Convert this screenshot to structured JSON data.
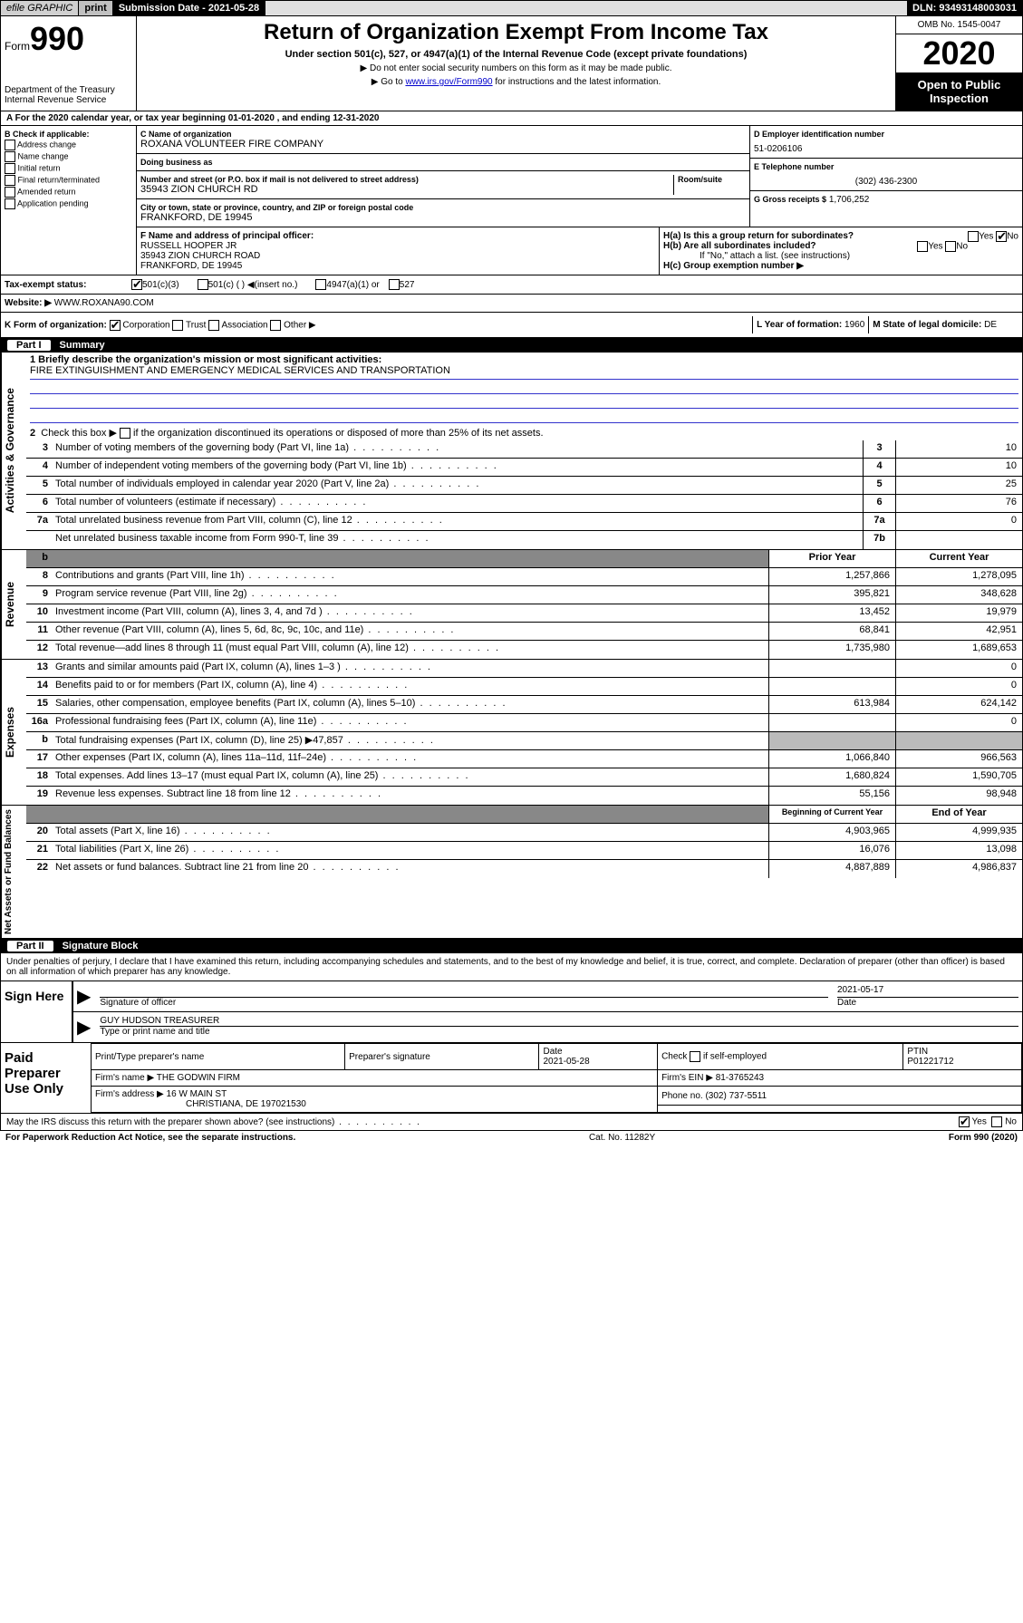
{
  "topbar": {
    "efile_label": "efile GRAPHIC",
    "print_btn": "print",
    "sub_date_label": "Submission Date - 2021-05-28",
    "dln": "DLN: 93493148003031"
  },
  "header": {
    "form_prefix": "Form",
    "form_no": "990",
    "dept": "Department of the Treasury\nInternal Revenue Service",
    "title": "Return of Organization Exempt From Income Tax",
    "subtitle": "Under section 501(c), 527, or 4947(a)(1) of the Internal Revenue Code (except private foundations)",
    "note1": "▶ Do not enter social security numbers on this form as it may be made public.",
    "note2_pre": "▶ Go to ",
    "note2_link": "www.irs.gov/Form990",
    "note2_post": " for instructions and the latest information.",
    "omb": "OMB No. 1545-0047",
    "year": "2020",
    "inspect": "Open to Public Inspection"
  },
  "lineA": "A For the 2020 calendar year, or tax year beginning 01-01-2020   , and ending 12-31-2020",
  "colB": {
    "hdr": "B Check if applicable:",
    "opts": [
      "Address change",
      "Name change",
      "Initial return",
      "Final return/terminated",
      "Amended return",
      "Application pending"
    ]
  },
  "colC": {
    "name_lbl": "C Name of organization",
    "name_val": "ROXANA VOLUNTEER FIRE COMPANY",
    "dba_lbl": "Doing business as",
    "dba_val": "",
    "addr_lbl": "Number and street (or P.O. box if mail is not delivered to street address)",
    "room_lbl": "Room/suite",
    "addr_val": "35943 ZION CHURCH RD",
    "city_lbl": "City or town, state or province, country, and ZIP or foreign postal code",
    "city_val": "FRANKFORD, DE  19945"
  },
  "colD": {
    "ein_lbl": "D Employer identification number",
    "ein_val": "51-0206106",
    "tel_lbl": "E Telephone number",
    "tel_val": "(302) 436-2300",
    "gross_lbl": "G Gross receipts $",
    "gross_val": "1,706,252"
  },
  "rowF": {
    "lbl": "F  Name and address of principal officer:",
    "name": "RUSSELL HOOPER JR",
    "addr1": "35943 ZION CHURCH ROAD",
    "addr2": "FRANKFORD, DE  19945"
  },
  "rowH": {
    "ha": "H(a)  Is this a group return for subordinates?",
    "hb": "H(b)  Are all subordinates included?",
    "hb_note": "If \"No,\" attach a list. (see instructions)",
    "hc": "H(c)  Group exemption number ▶",
    "yes": "Yes",
    "no": "No"
  },
  "rowI": {
    "lbl": "Tax-exempt status:",
    "o1": "501(c)(3)",
    "o2": "501(c) (  ) ◀(insert no.)",
    "o3": "4947(a)(1) or",
    "o4": "527"
  },
  "rowJ": {
    "lbl": "Website: ▶",
    "val": "WWW.ROXANA90.COM"
  },
  "rowK": {
    "lbl": "K Form of organization:",
    "o1": "Corporation",
    "o2": "Trust",
    "o3": "Association",
    "o4": "Other ▶",
    "l_lbl": "L Year of formation:",
    "l_val": "1960",
    "m_lbl": "M State of legal domicile:",
    "m_val": "DE"
  },
  "partI": {
    "num": "Part I",
    "title": "Summary"
  },
  "sideLabels": {
    "ag": "Activities & Governance",
    "rev": "Revenue",
    "exp": "Expenses",
    "na": "Net Assets or Fund Balances"
  },
  "summary": {
    "l1_lbl": "1  Briefly describe the organization's mission or most significant activities:",
    "l1_val": "FIRE EXTINGUISHMENT AND EMERGENCY MEDICAL SERVICES AND TRANSPORTATION",
    "l2_lbl": "Check this box ▶",
    "l2_post": " if the organization discontinued its operations or disposed of more than 25% of its net assets.",
    "lines_ag": [
      {
        "n": "3",
        "t": "Number of voting members of the governing body (Part VI, line 1a)",
        "bn": "3",
        "bv": "10"
      },
      {
        "n": "4",
        "t": "Number of independent voting members of the governing body (Part VI, line 1b)",
        "bn": "4",
        "bv": "10"
      },
      {
        "n": "5",
        "t": "Total number of individuals employed in calendar year 2020 (Part V, line 2a)",
        "bn": "5",
        "bv": "25"
      },
      {
        "n": "6",
        "t": "Total number of volunteers (estimate if necessary)",
        "bn": "6",
        "bv": "76"
      },
      {
        "n": "7a",
        "t": "Total unrelated business revenue from Part VIII, column (C), line 12",
        "bn": "7a",
        "bv": "0"
      },
      {
        "n": "",
        "t": "Net unrelated business taxable income from Form 990-T, line 39",
        "bn": "7b",
        "bv": ""
      }
    ],
    "yrhdr": {
      "py": "Prior Year",
      "cy": "Current Year",
      "b": "b"
    },
    "lines_rev": [
      {
        "n": "8",
        "t": "Contributions and grants (Part VIII, line 1h)",
        "py": "1,257,866",
        "cy": "1,278,095"
      },
      {
        "n": "9",
        "t": "Program service revenue (Part VIII, line 2g)",
        "py": "395,821",
        "cy": "348,628"
      },
      {
        "n": "10",
        "t": "Investment income (Part VIII, column (A), lines 3, 4, and 7d )",
        "py": "13,452",
        "cy": "19,979"
      },
      {
        "n": "11",
        "t": "Other revenue (Part VIII, column (A), lines 5, 6d, 8c, 9c, 10c, and 11e)",
        "py": "68,841",
        "cy": "42,951"
      },
      {
        "n": "12",
        "t": "Total revenue—add lines 8 through 11 (must equal Part VIII, column (A), line 12)",
        "py": "1,735,980",
        "cy": "1,689,653"
      }
    ],
    "lines_exp": [
      {
        "n": "13",
        "t": "Grants and similar amounts paid (Part IX, column (A), lines 1–3 )",
        "py": "",
        "cy": "0"
      },
      {
        "n": "14",
        "t": "Benefits paid to or for members (Part IX, column (A), line 4)",
        "py": "",
        "cy": "0"
      },
      {
        "n": "15",
        "t": "Salaries, other compensation, employee benefits (Part IX, column (A), lines 5–10)",
        "py": "613,984",
        "cy": "624,142"
      },
      {
        "n": "16a",
        "t": "Professional fundraising fees (Part IX, column (A), line 11e)",
        "py": "",
        "cy": "0"
      },
      {
        "n": "b",
        "t": "Total fundraising expenses (Part IX, column (D), line 25) ▶47,857",
        "py": "GRAY",
        "cy": "GRAY"
      },
      {
        "n": "17",
        "t": "Other expenses (Part IX, column (A), lines 11a–11d, 11f–24e)",
        "py": "1,066,840",
        "cy": "966,563"
      },
      {
        "n": "18",
        "t": "Total expenses. Add lines 13–17 (must equal Part IX, column (A), line 25)",
        "py": "1,680,824",
        "cy": "1,590,705"
      },
      {
        "n": "19",
        "t": "Revenue less expenses. Subtract line 18 from line 12",
        "py": "55,156",
        "cy": "98,948"
      }
    ],
    "nahdr": {
      "py": "Beginning of Current Year",
      "cy": "End of Year"
    },
    "lines_na": [
      {
        "n": "20",
        "t": "Total assets (Part X, line 16)",
        "py": "4,903,965",
        "cy": "4,999,935"
      },
      {
        "n": "21",
        "t": "Total liabilities (Part X, line 26)",
        "py": "16,076",
        "cy": "13,098"
      },
      {
        "n": "22",
        "t": "Net assets or fund balances. Subtract line 21 from line 20",
        "py": "4,887,889",
        "cy": "4,986,837"
      }
    ]
  },
  "partII": {
    "num": "Part II",
    "title": "Signature Block"
  },
  "perjury": "Under penalties of perjury, I declare that I have examined this return, including accompanying schedules and statements, and to the best of my knowledge and belief, it is true, correct, and complete. Declaration of preparer (other than officer) is based on all information of which preparer has any knowledge.",
  "sign": {
    "lbl": "Sign Here",
    "sig_lbl": "Signature of officer",
    "date_lbl": "Date",
    "date_val": "2021-05-17",
    "name_val": "GUY HUDSON  TREASURER",
    "name_lbl": "Type or print name and title"
  },
  "prep": {
    "lbl": "Paid Preparer Use Only",
    "h1": "Print/Type preparer's name",
    "h2": "Preparer's signature",
    "h3": "Date",
    "h3v": "2021-05-28",
    "h4": "Check",
    "h4b": "if self-employed",
    "h5": "PTIN",
    "h5v": "P01221712",
    "firm_lbl": "Firm's name      ▶",
    "firm_val": "THE GODWIN FIRM",
    "ein_lbl": "Firm's EIN ▶",
    "ein_val": "81-3765243",
    "addr_lbl": "Firm's address ▶",
    "addr_val": "16 W MAIN ST",
    "addr2": "CHRISTIANA, DE  197021530",
    "ph_lbl": "Phone no.",
    "ph_val": "(302) 737-5511"
  },
  "footer": {
    "q": "May the IRS discuss this return with the preparer shown above? (see instructions)",
    "yes": "Yes",
    "no": "No",
    "pra": "For Paperwork Reduction Act Notice, see the separate instructions.",
    "cat": "Cat. No. 11282Y",
    "form": "Form 990 (2020)"
  }
}
